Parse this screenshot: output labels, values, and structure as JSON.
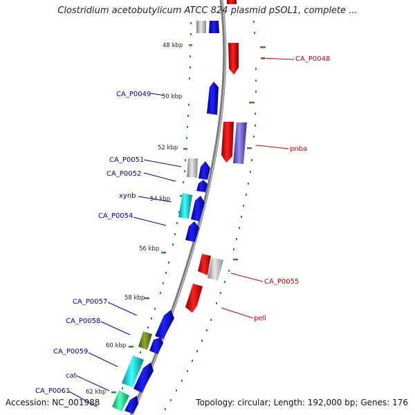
{
  "title": "Clostridium acetobutylicum ATCC 824 plasmid pSOL1, complete ...",
  "accession_text": "Accession: NC_001988",
  "summary_text": "Topology: circular; Length: 192,000 bp; Genes: 176",
  "colors": {
    "forward_gene": "#0000ee",
    "reverse_gene": "#ee0000",
    "forward_label": "#0000aa",
    "reverse_label": "#cc0000",
    "gc_ticks": "#2e8b2e",
    "backbone": "#808080",
    "hypothetical": "#b0b0b0",
    "cyan_gene": "#20c8c8",
    "olive_gene": "#6b8e23",
    "purple_gene": "#7b68ee",
    "teal_gene": "#2fd6a0"
  },
  "scale_labels": [
    "48 kbp",
    "50 kbp",
    "52 kbp",
    "54 kbp",
    "56 kbp",
    "58 kbp",
    "60 kbp",
    "62 kbp"
  ],
  "left_labels": [
    "CA_P0049",
    "CA_P0051",
    "CA_P0052",
    "xynb",
    "CA_P0054",
    "CA_P0057",
    "CA_P0058",
    "CA_P0059",
    "cat",
    "CA_P0061"
  ],
  "right_labels": [
    "CA_P0048",
    "pnba",
    "CA_P0055",
    "pell"
  ]
}
